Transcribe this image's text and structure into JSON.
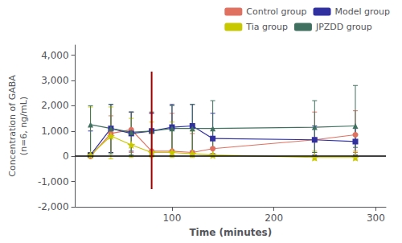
{
  "chart_data": {
    "type": "line",
    "xlabel": "Time (minutes)",
    "ylabel": "Concentration of GABA\n(n=6, ng/mL)",
    "x": [
      20,
      40,
      60,
      80,
      100,
      120,
      140,
      240,
      280
    ],
    "series": [
      {
        "name": "Control group",
        "color": "#e07060",
        "marker": "circle",
        "values": [
          0,
          900,
          1050,
          200,
          200,
          150,
          300,
          650,
          850
        ],
        "yerr_low": [
          0,
          750,
          900,
          200,
          150,
          100,
          200,
          500,
          700
        ],
        "yerr_high": [
          0,
          700,
          700,
          1500,
          1500,
          750,
          800,
          1100,
          950
        ]
      },
      {
        "name": "Model group",
        "color": "#3030a0",
        "marker": "square",
        "values": [
          50,
          1100,
          900,
          1000,
          1150,
          1200,
          700,
          650,
          580
        ],
        "yerr_low": [
          50,
          950,
          700,
          900,
          950,
          1000,
          600,
          600,
          530
        ],
        "yerr_high": [
          950,
          950,
          850,
          700,
          900,
          850,
          1000,
          550,
          520
        ]
      },
      {
        "name": "Tia group",
        "color": "#c8c800",
        "marker": "star",
        "values": [
          50,
          800,
          450,
          150,
          150,
          100,
          50,
          -50,
          -50
        ],
        "yerr_low": [
          50,
          900,
          500,
          200,
          200,
          150,
          100,
          100,
          100
        ],
        "yerr_high": [
          1900,
          1150,
          1050,
          1200,
          1200,
          900,
          650,
          250,
          250
        ]
      },
      {
        "name": "JPZDD group",
        "color": "#407060",
        "marker": "triangle",
        "values": [
          1250,
          1100,
          950,
          1000,
          1100,
          1100,
          1100,
          1150,
          1200
        ],
        "yerr_low": [
          1200,
          1000,
          900,
          950,
          900,
          900,
          750,
          1000,
          850
        ],
        "yerr_high": [
          750,
          950,
          800,
          750,
          900,
          950,
          1100,
          1050,
          1600
        ]
      }
    ],
    "drug_line": {
      "x": 80,
      "ymin": -1300,
      "ymax": 3350,
      "color": "#a00000"
    },
    "hline": {
      "y": 0,
      "color": "#000000"
    },
    "xlim": [
      5,
      310
    ],
    "ylim": [
      -2000,
      4400
    ],
    "xticks": [
      100,
      200,
      300
    ],
    "yticks": [
      {
        "value": -2000,
        "label": "-2,000"
      },
      {
        "value": -1000,
        "label": "-1,000"
      },
      0,
      {
        "value": 1000,
        "label": "1,000"
      },
      {
        "value": 2000,
        "label": "2,000"
      },
      {
        "value": 3000,
        "label": "3,000"
      },
      {
        "value": 4000,
        "label": "4,000"
      }
    ],
    "grid": false,
    "legend": "upper right"
  }
}
